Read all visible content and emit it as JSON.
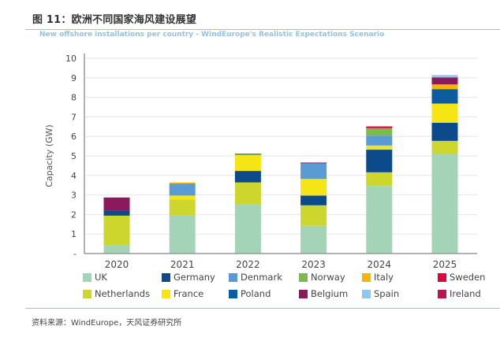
{
  "header": {
    "figure_title": "图 11：欧洲不同国家海风建设展望",
    "subtitle": "New offshore installations per country - WindEurope's Realistic Expectations Scenario"
  },
  "footer": {
    "source": "资料来源：WindEurope，天风证券研究所"
  },
  "chart_data": {
    "type": "bar",
    "stacked": true,
    "title": "New offshore installations per country - WindEurope's Realistic Expectations Scenario",
    "xlabel": "",
    "ylabel": "Capacity (GW)",
    "ylim": [
      0,
      10
    ],
    "yticks": [
      "-",
      "1",
      "2",
      "3",
      "4",
      "5",
      "6",
      "7",
      "8",
      "9",
      "10"
    ],
    "grid": true,
    "legend_position": "bottom",
    "categories": [
      "2020",
      "2021",
      "2022",
      "2023",
      "2024",
      "2025"
    ],
    "series": [
      {
        "name": "UK",
        "color": "#a4d4b8",
        "values": [
          0.44,
          1.96,
          2.54,
          1.42,
          3.46,
          5.08
        ]
      },
      {
        "name": "Netherlands",
        "color": "#cdd62c",
        "values": [
          1.5,
          0.81,
          1.1,
          1.05,
          0.7,
          0.69
        ]
      },
      {
        "name": "Germany",
        "color": "#0c4a8c",
        "values": [
          0.24,
          0,
          0.59,
          0.5,
          1.16,
          0.93
        ]
      },
      {
        "name": "France",
        "color": "#f5e515",
        "values": [
          0,
          0.2,
          0.81,
          0.85,
          0.21,
          0.98
        ]
      },
      {
        "name": "Poland",
        "color": "#0d5ba0",
        "values": [
          0,
          0,
          0,
          0,
          0,
          0.74
        ]
      },
      {
        "name": "Denmark",
        "color": "#5b9bd5",
        "values": [
          0,
          0.6,
          0,
          0.8,
          0.51,
          0
        ]
      },
      {
        "name": "Norway",
        "color": "#7cbb4a",
        "values": [
          0,
          0.02,
          0.04,
          0,
          0.38,
          0
        ]
      },
      {
        "name": "Italy",
        "color": "#f8b500",
        "values": [
          0,
          0.05,
          0,
          0,
          0,
          0.24
        ]
      },
      {
        "name": "Sweden",
        "color": "#e4003a",
        "values": [
          0,
          0,
          0.03,
          0,
          0.09,
          0
        ]
      },
      {
        "name": "Belgium",
        "color": "#8b1a5c",
        "values": [
          0.69,
          0,
          0,
          0.04,
          0,
          0.36
        ]
      },
      {
        "name": "Spain",
        "color": "#8ec6ee",
        "values": [
          0,
          0,
          0,
          0,
          0,
          0.12
        ]
      },
      {
        "name": "Ireland",
        "color": "#b5174e",
        "values": [
          0,
          0,
          0,
          0,
          0,
          0
        ]
      }
    ],
    "legend_order": [
      "UK",
      "Germany",
      "Denmark",
      "Norway",
      "Italy",
      "Sweden",
      "Netherlands",
      "France",
      "Poland",
      "Belgium",
      "Spain",
      "Ireland"
    ]
  }
}
